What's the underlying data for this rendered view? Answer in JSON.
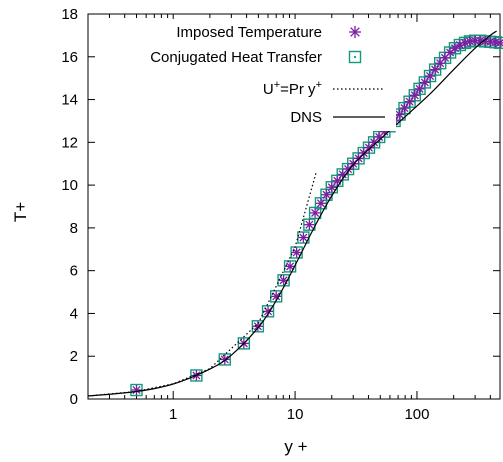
{
  "chart_data": {
    "type": "scatter",
    "title": "",
    "xlabel": "y +",
    "ylabel": "T+",
    "x_scale": "log",
    "xlim": [
      0.2,
      480
    ],
    "ylim": [
      0,
      18
    ],
    "x_ticks": [
      1,
      10,
      100
    ],
    "x_tick_labels": [
      "1",
      "10",
      "100"
    ],
    "y_ticks": [
      0,
      2,
      4,
      6,
      8,
      10,
      12,
      14,
      16,
      18
    ],
    "y_tick_labels": [
      "0",
      "2",
      "4",
      "6",
      "8",
      "10",
      "12",
      "14",
      "16",
      "18"
    ],
    "grid": false,
    "legend_position": "top-right",
    "series": [
      {
        "name": "Imposed Temperature",
        "marker": "asterisk",
        "color": "#7a1fa2",
        "x": [
          0.5,
          1.55,
          2.65,
          3.8,
          4.95,
          6.0,
          7.0,
          8.05,
          9.1,
          10.3,
          11.7,
          13.1,
          14.6,
          16.3,
          18.1,
          20.0,
          22.2,
          24.6,
          27.2,
          30.0,
          33.2,
          36.6,
          40.4,
          44.5,
          49.0,
          54.0,
          59.5,
          65.5,
          72.0,
          79.0,
          87.0,
          96.0,
          105.0,
          116.0,
          128.0,
          141.0,
          155.0,
          170.0,
          187.0,
          205.0,
          225.0,
          248.0,
          272.0,
          300.0,
          330.0,
          363.0,
          400.0,
          440.0,
          480.0
        ],
        "y": [
          0.42,
          1.1,
          1.85,
          2.6,
          3.4,
          4.1,
          4.8,
          5.55,
          6.2,
          6.85,
          7.55,
          8.15,
          8.7,
          9.15,
          9.55,
          9.9,
          10.2,
          10.5,
          10.75,
          11.0,
          11.25,
          11.5,
          11.75,
          12.0,
          12.25,
          12.5,
          12.75,
          13.0,
          13.3,
          13.6,
          13.9,
          14.2,
          14.5,
          14.8,
          15.1,
          15.4,
          15.7,
          15.95,
          16.2,
          16.4,
          16.55,
          16.65,
          16.72,
          16.75,
          16.75,
          16.72,
          16.7,
          16.68,
          16.65
        ]
      },
      {
        "name": "Conjugated Heat Transfer",
        "marker": "square-dot",
        "color": "#13997a",
        "x": [
          0.5,
          1.55,
          2.65,
          3.8,
          4.95,
          6.0,
          7.0,
          8.05,
          9.1,
          10.3,
          11.7,
          13.1,
          14.6,
          16.3,
          18.1,
          20.0,
          22.2,
          24.6,
          27.2,
          30.0,
          33.2,
          36.6,
          40.4,
          44.5,
          49.0,
          54.0,
          59.5,
          65.5,
          72.0,
          79.0,
          87.0,
          96.0,
          105.0,
          116.0,
          128.0,
          141.0,
          155.0,
          170.0,
          187.0,
          205.0,
          225.0,
          248.0,
          272.0,
          300.0,
          330.0,
          363.0,
          400.0,
          440.0,
          480.0
        ],
        "y": [
          0.42,
          1.1,
          1.85,
          2.6,
          3.4,
          4.1,
          4.8,
          5.55,
          6.2,
          6.85,
          7.55,
          8.15,
          8.7,
          9.15,
          9.55,
          9.9,
          10.2,
          10.5,
          10.75,
          11.0,
          11.25,
          11.5,
          11.75,
          12.0,
          12.25,
          12.5,
          12.75,
          13.0,
          13.3,
          13.6,
          13.9,
          14.2,
          14.5,
          14.8,
          15.1,
          15.4,
          15.7,
          15.95,
          16.2,
          16.4,
          16.55,
          16.65,
          16.72,
          16.75,
          16.75,
          16.72,
          16.7,
          16.68,
          16.65
        ]
      },
      {
        "name": "U+=Pr y+",
        "style": "dotted-line",
        "color": "#000000",
        "x": [
          0.2,
          0.5,
          1,
          2,
          5,
          10,
          15
        ],
        "y": [
          0.142,
          0.355,
          0.71,
          1.42,
          3.55,
          7.1,
          10.65
        ]
      },
      {
        "name": "DNS",
        "style": "solid-line",
        "color": "#000000",
        "x": [
          0.2,
          0.5,
          1,
          2,
          3,
          5,
          7,
          10,
          14,
          20,
          30,
          50,
          80,
          130,
          200,
          300,
          400,
          450
        ],
        "y": [
          0.14,
          0.35,
          0.7,
          1.4,
          2.05,
          3.35,
          4.6,
          6.25,
          7.9,
          9.5,
          10.95,
          12.15,
          13.2,
          14.3,
          15.4,
          16.4,
          17.0,
          17.2
        ]
      }
    ]
  }
}
